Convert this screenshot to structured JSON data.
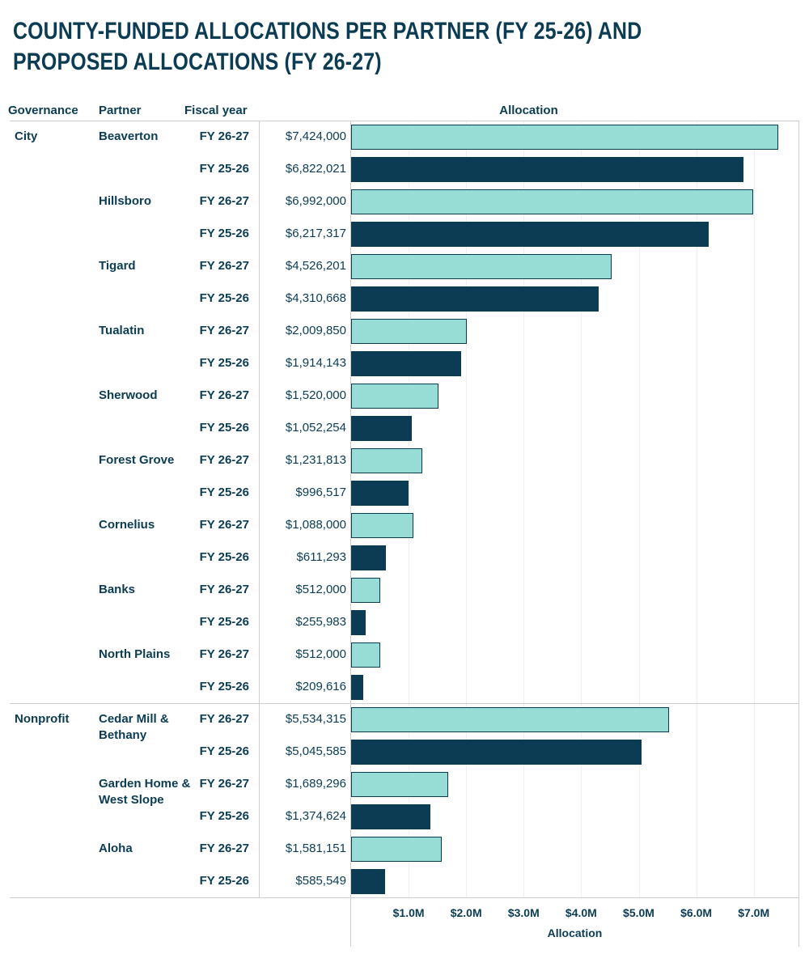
{
  "title_lines": [
    "COUNTY-FUNDED ALLOCATIONS PER PARTNER (FY 25-26) AND",
    "PROPOSED ALLOCATIONS (FY 26-27)"
  ],
  "headers": {
    "governance": "Governance",
    "partner": "Partner",
    "fiscal_year": "Fiscal year",
    "allocation": "Allocation"
  },
  "colors": {
    "FY 26-27": "#97dcd5",
    "FY 25-26": "#0b3c53",
    "text": "#0b3c53"
  },
  "chart_data": {
    "type": "bar",
    "orientation": "horizontal",
    "xlabel": "Allocation",
    "xlim": [
      0,
      7800000
    ],
    "x_ticks": [
      "$1.0M",
      "$2.0M",
      "$3.0M",
      "$4.0M",
      "$5.0M",
      "$6.0M",
      "$7.0M"
    ],
    "x_tick_values": [
      1000000,
      2000000,
      3000000,
      4000000,
      5000000,
      6000000,
      7000000
    ],
    "grid": true,
    "groups": [
      {
        "governance": "City",
        "partners": [
          {
            "name": "Beaverton",
            "rows": [
              {
                "fy": "FY 26-27",
                "value": 7424000,
                "label": "$7,424,000"
              },
              {
                "fy": "FY 25-26",
                "value": 6822021,
                "label": "$6,822,021"
              }
            ]
          },
          {
            "name": "Hillsboro",
            "rows": [
              {
                "fy": "FY 26-27",
                "value": 6992000,
                "label": "$6,992,000"
              },
              {
                "fy": "FY 25-26",
                "value": 6217317,
                "label": "$6,217,317"
              }
            ]
          },
          {
            "name": "Tigard",
            "rows": [
              {
                "fy": "FY 26-27",
                "value": 4526201,
                "label": "$4,526,201"
              },
              {
                "fy": "FY 25-26",
                "value": 4310668,
                "label": "$4,310,668"
              }
            ]
          },
          {
            "name": "Tualatin",
            "rows": [
              {
                "fy": "FY 26-27",
                "value": 2009850,
                "label": "$2,009,850"
              },
              {
                "fy": "FY 25-26",
                "value": 1914143,
                "label": "$1,914,143"
              }
            ]
          },
          {
            "name": "Sherwood",
            "rows": [
              {
                "fy": "FY 26-27",
                "value": 1520000,
                "label": "$1,520,000"
              },
              {
                "fy": "FY 25-26",
                "value": 1052254,
                "label": "$1,052,254"
              }
            ]
          },
          {
            "name": "Forest Grove",
            "rows": [
              {
                "fy": "FY 26-27",
                "value": 1231813,
                "label": "$1,231,813"
              },
              {
                "fy": "FY 25-26",
                "value": 996517,
                "label": "$996,517"
              }
            ]
          },
          {
            "name": "Cornelius",
            "rows": [
              {
                "fy": "FY 26-27",
                "value": 1088000,
                "label": "$1,088,000"
              },
              {
                "fy": "FY 25-26",
                "value": 611293,
                "label": "$611,293"
              }
            ]
          },
          {
            "name": "Banks",
            "rows": [
              {
                "fy": "FY 26-27",
                "value": 512000,
                "label": "$512,000"
              },
              {
                "fy": "FY 25-26",
                "value": 255983,
                "label": "$255,983"
              }
            ]
          },
          {
            "name": "North Plains",
            "rows": [
              {
                "fy": "FY 26-27",
                "value": 512000,
                "label": "$512,000"
              },
              {
                "fy": "FY 25-26",
                "value": 209616,
                "label": "$209,616"
              }
            ]
          }
        ]
      },
      {
        "governance": "Nonprofit",
        "partners": [
          {
            "name": "Cedar Mill & Bethany",
            "rows": [
              {
                "fy": "FY 26-27",
                "value": 5534315,
                "label": "$5,534,315"
              },
              {
                "fy": "FY 25-26",
                "value": 5045585,
                "label": "$5,045,585"
              }
            ]
          },
          {
            "name": "Garden Home & West Slope",
            "rows": [
              {
                "fy": "FY 26-27",
                "value": 1689296,
                "label": "$1,689,296"
              },
              {
                "fy": "FY 25-26",
                "value": 1374624,
                "label": "$1,374,624"
              }
            ]
          },
          {
            "name": "Aloha",
            "rows": [
              {
                "fy": "FY 26-27",
                "value": 1581151,
                "label": "$1,581,151"
              },
              {
                "fy": "FY 25-26",
                "value": 585549,
                "label": "$585,549"
              }
            ]
          }
        ]
      }
    ]
  }
}
